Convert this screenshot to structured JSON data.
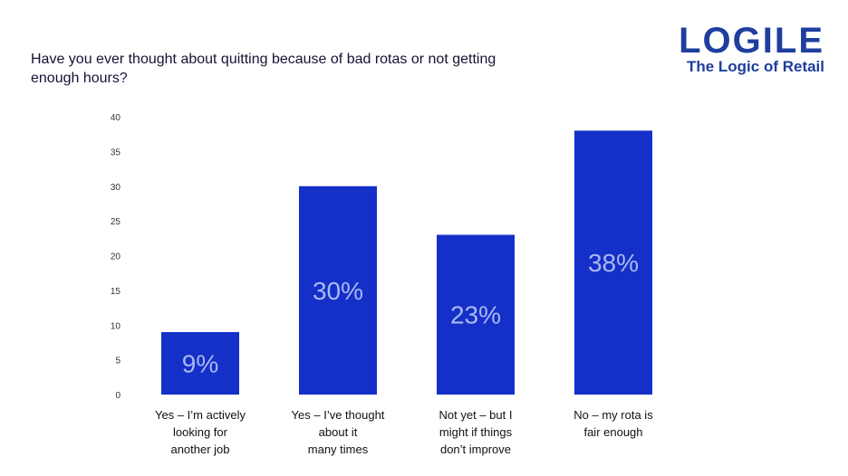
{
  "logo": {
    "word": "LOGILE",
    "tagline": "The Logic of Retail"
  },
  "colors": {
    "bar": "#1430c8",
    "brand": "#1f3e9e"
  },
  "chart_data": {
    "type": "bar",
    "title": "Have you ever thought about quitting because of bad rotas or not getting enough hours?",
    "categories": [
      [
        "Yes – I’m actively",
        "looking for",
        "another job"
      ],
      [
        "Yes – I’ve thought",
        "about it",
        "many times"
      ],
      [
        "Not yet – but I",
        "might if things",
        "don’t improve"
      ],
      [
        "No – my rota is",
        "fair enough"
      ]
    ],
    "values": [
      9,
      30,
      23,
      38
    ],
    "data_labels": [
      "9%",
      "30%",
      "23%",
      "38%"
    ],
    "ylim": [
      0,
      40
    ],
    "yticks": [
      0,
      5,
      10,
      15,
      20,
      25,
      30,
      35,
      40
    ],
    "grid": false,
    "legend": "none"
  }
}
